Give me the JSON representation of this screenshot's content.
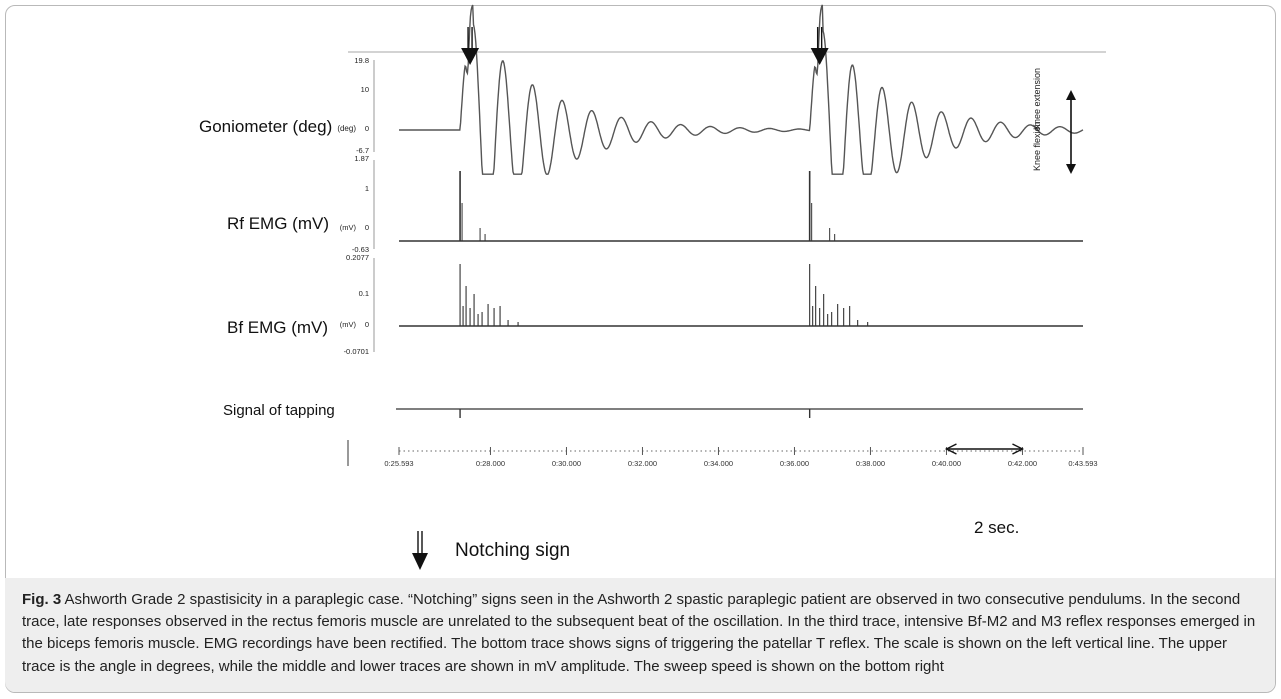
{
  "figure": {
    "rows": {
      "goniometer": {
        "label": "Goniometer (deg)",
        "unit_inline": "(deg)",
        "ticks": [
          "19.8",
          "10",
          "0",
          "-6.7"
        ]
      },
      "rf": {
        "label": "Rf EMG (mV)",
        "unit_inline": "(mV)",
        "ticks": [
          "1.87",
          "1",
          "0",
          "-0.63"
        ]
      },
      "bf": {
        "label": "Bf EMG (mV)",
        "unit_inline": "(mV)",
        "ticks": [
          "0.2077",
          "0.1",
          "0",
          "-0.0701"
        ]
      },
      "tap": {
        "label": "Signal of tapping"
      }
    },
    "knee": {
      "extension": "Knee extension",
      "flexion": "Knee flexion"
    },
    "time_axis": {
      "labels": [
        "0:25.593",
        "0:28.000",
        "0:30.000",
        "0:32.000",
        "0:34.000",
        "0:36.000",
        "0:38.000",
        "0:40.000",
        "0:42.000",
        "0:43.593"
      ],
      "values": [
        25.593,
        28.0,
        30.0,
        32.0,
        34.0,
        36.0,
        38.0,
        40.0,
        42.0,
        43.593
      ]
    },
    "scale_bar": {
      "label": "2 sec.",
      "from_s": 40.0,
      "to_s": 42.0
    },
    "legend": {
      "label": "Notching sign"
    },
    "notching_times_s": [
      27.2,
      36.4
    ],
    "tap_times_s": [
      27.2,
      36.4
    ],
    "colors": {
      "trace": "#333333",
      "goniometer": "#555555",
      "frame": "#b9b9b9",
      "caption_bg": "#eeeeee"
    }
  },
  "caption": {
    "fig_label": "Fig. 3",
    "text": " Ashworth Grade 2 spastisicity in a paraplegic case. “Notching” signs seen in the Ashworth 2 spastic paraplegic patient are observed in two consecutive pendulums. In the second trace, late responses observed in the rectus femoris muscle are unrelated to the subsequent beat of the oscillation. In the third trace, intensive Bf-M2 and M3 reflex responses emerged in the biceps femoris muscle. EMG recordings have been rectified. The bottom trace shows signs of triggering the patellar T reflex. The scale is shown on the left vertical line. The upper trace is the angle in degrees, while the middle and lower traces are shown in mV amplitude. The sweep speed is shown on the bottom right"
  }
}
